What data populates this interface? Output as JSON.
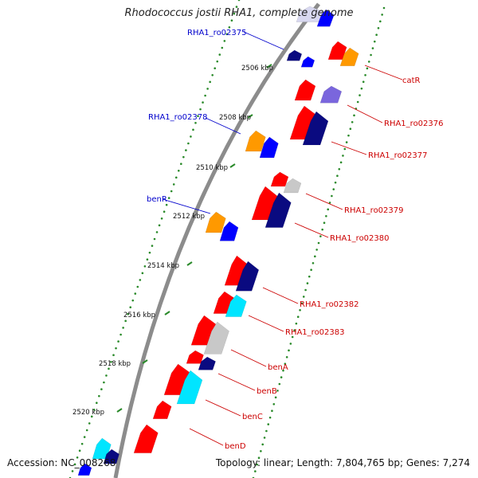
{
  "title": "Rhodococcus jostii RHA1, complete genome",
  "footer": {
    "accession": "Accession: NC_008268",
    "summary": "Topology: linear; Length: 7,804,765 bp; Genes: 7,274"
  },
  "colors": {
    "backbone": "#8c8c8c",
    "tick_dots": "#2a8a2a",
    "label_blue": "#0000cc",
    "label_red": "#cc0000",
    "gene_red": "#ff0000",
    "gene_orange": "#ff9900",
    "gene_navy": "#0a0a80",
    "gene_blue": "#0000ff",
    "gene_cyan": "#00e5ff",
    "gene_gray": "#c8c8c8",
    "gene_lightblue": "#d8d8f0"
  },
  "axis_ticks": [
    {
      "label": "2506 kbp"
    },
    {
      "label": "2508 kbp"
    },
    {
      "label": "2510 kbp"
    },
    {
      "label": "2512 kbp"
    },
    {
      "label": "2514 kbp"
    },
    {
      "label": "2516 kbp"
    },
    {
      "label": "2518 kbp"
    },
    {
      "label": "2520 kbp"
    }
  ],
  "gene_labels": [
    {
      "text": "RHA1_ro02375",
      "color": "blue"
    },
    {
      "text": "RHA1_ro02378",
      "color": "blue"
    },
    {
      "text": "benR",
      "color": "blue"
    },
    {
      "text": "catR",
      "color": "red"
    },
    {
      "text": "RHA1_ro02376",
      "color": "red"
    },
    {
      "text": "RHA1_ro02377",
      "color": "red"
    },
    {
      "text": "RHA1_ro02379",
      "color": "red"
    },
    {
      "text": "RHA1_ro02380",
      "color": "red"
    },
    {
      "text": "RHA1_ro02382",
      "color": "red"
    },
    {
      "text": "RHA1_ro02383",
      "color": "red"
    },
    {
      "text": "benA",
      "color": "red"
    },
    {
      "text": "benB",
      "color": "red"
    },
    {
      "text": "benC",
      "color": "red"
    },
    {
      "text": "benD",
      "color": "red"
    }
  ],
  "features": [
    {
      "ring": "left",
      "color": "navy"
    },
    {
      "ring": "left",
      "color": "blue"
    },
    {
      "ring": "left",
      "color": "orange"
    },
    {
      "ring": "left",
      "color": "blue"
    },
    {
      "ring": "left",
      "color": "orange"
    },
    {
      "ring": "left",
      "color": "blue"
    },
    {
      "ring": "left",
      "color": "cyan"
    },
    {
      "ring": "left",
      "color": "navy"
    },
    {
      "ring": "left",
      "color": "blue"
    },
    {
      "ring": "right",
      "color": "lightblue"
    },
    {
      "ring": "right",
      "color": "blue"
    },
    {
      "ring": "right",
      "color": "red"
    },
    {
      "ring": "right",
      "color": "orange"
    },
    {
      "ring": "right",
      "color": "red"
    },
    {
      "ring": "right",
      "color": "purple"
    },
    {
      "ring": "right",
      "color": "red"
    },
    {
      "ring": "right",
      "color": "navy"
    },
    {
      "ring": "right",
      "color": "red"
    },
    {
      "ring": "right",
      "color": "gray"
    },
    {
      "ring": "right",
      "color": "red"
    },
    {
      "ring": "right",
      "color": "navy"
    },
    {
      "ring": "right",
      "color": "red"
    },
    {
      "ring": "right",
      "color": "navy"
    },
    {
      "ring": "right",
      "color": "red"
    },
    {
      "ring": "right",
      "color": "cyan"
    },
    {
      "ring": "right",
      "color": "red"
    },
    {
      "ring": "right",
      "color": "gray"
    },
    {
      "ring": "right",
      "color": "red"
    },
    {
      "ring": "right",
      "color": "navy"
    },
    {
      "ring": "right",
      "color": "red"
    },
    {
      "ring": "right",
      "color": "cyan"
    },
    {
      "ring": "right",
      "color": "red"
    },
    {
      "ring": "right",
      "color": "red"
    }
  ]
}
